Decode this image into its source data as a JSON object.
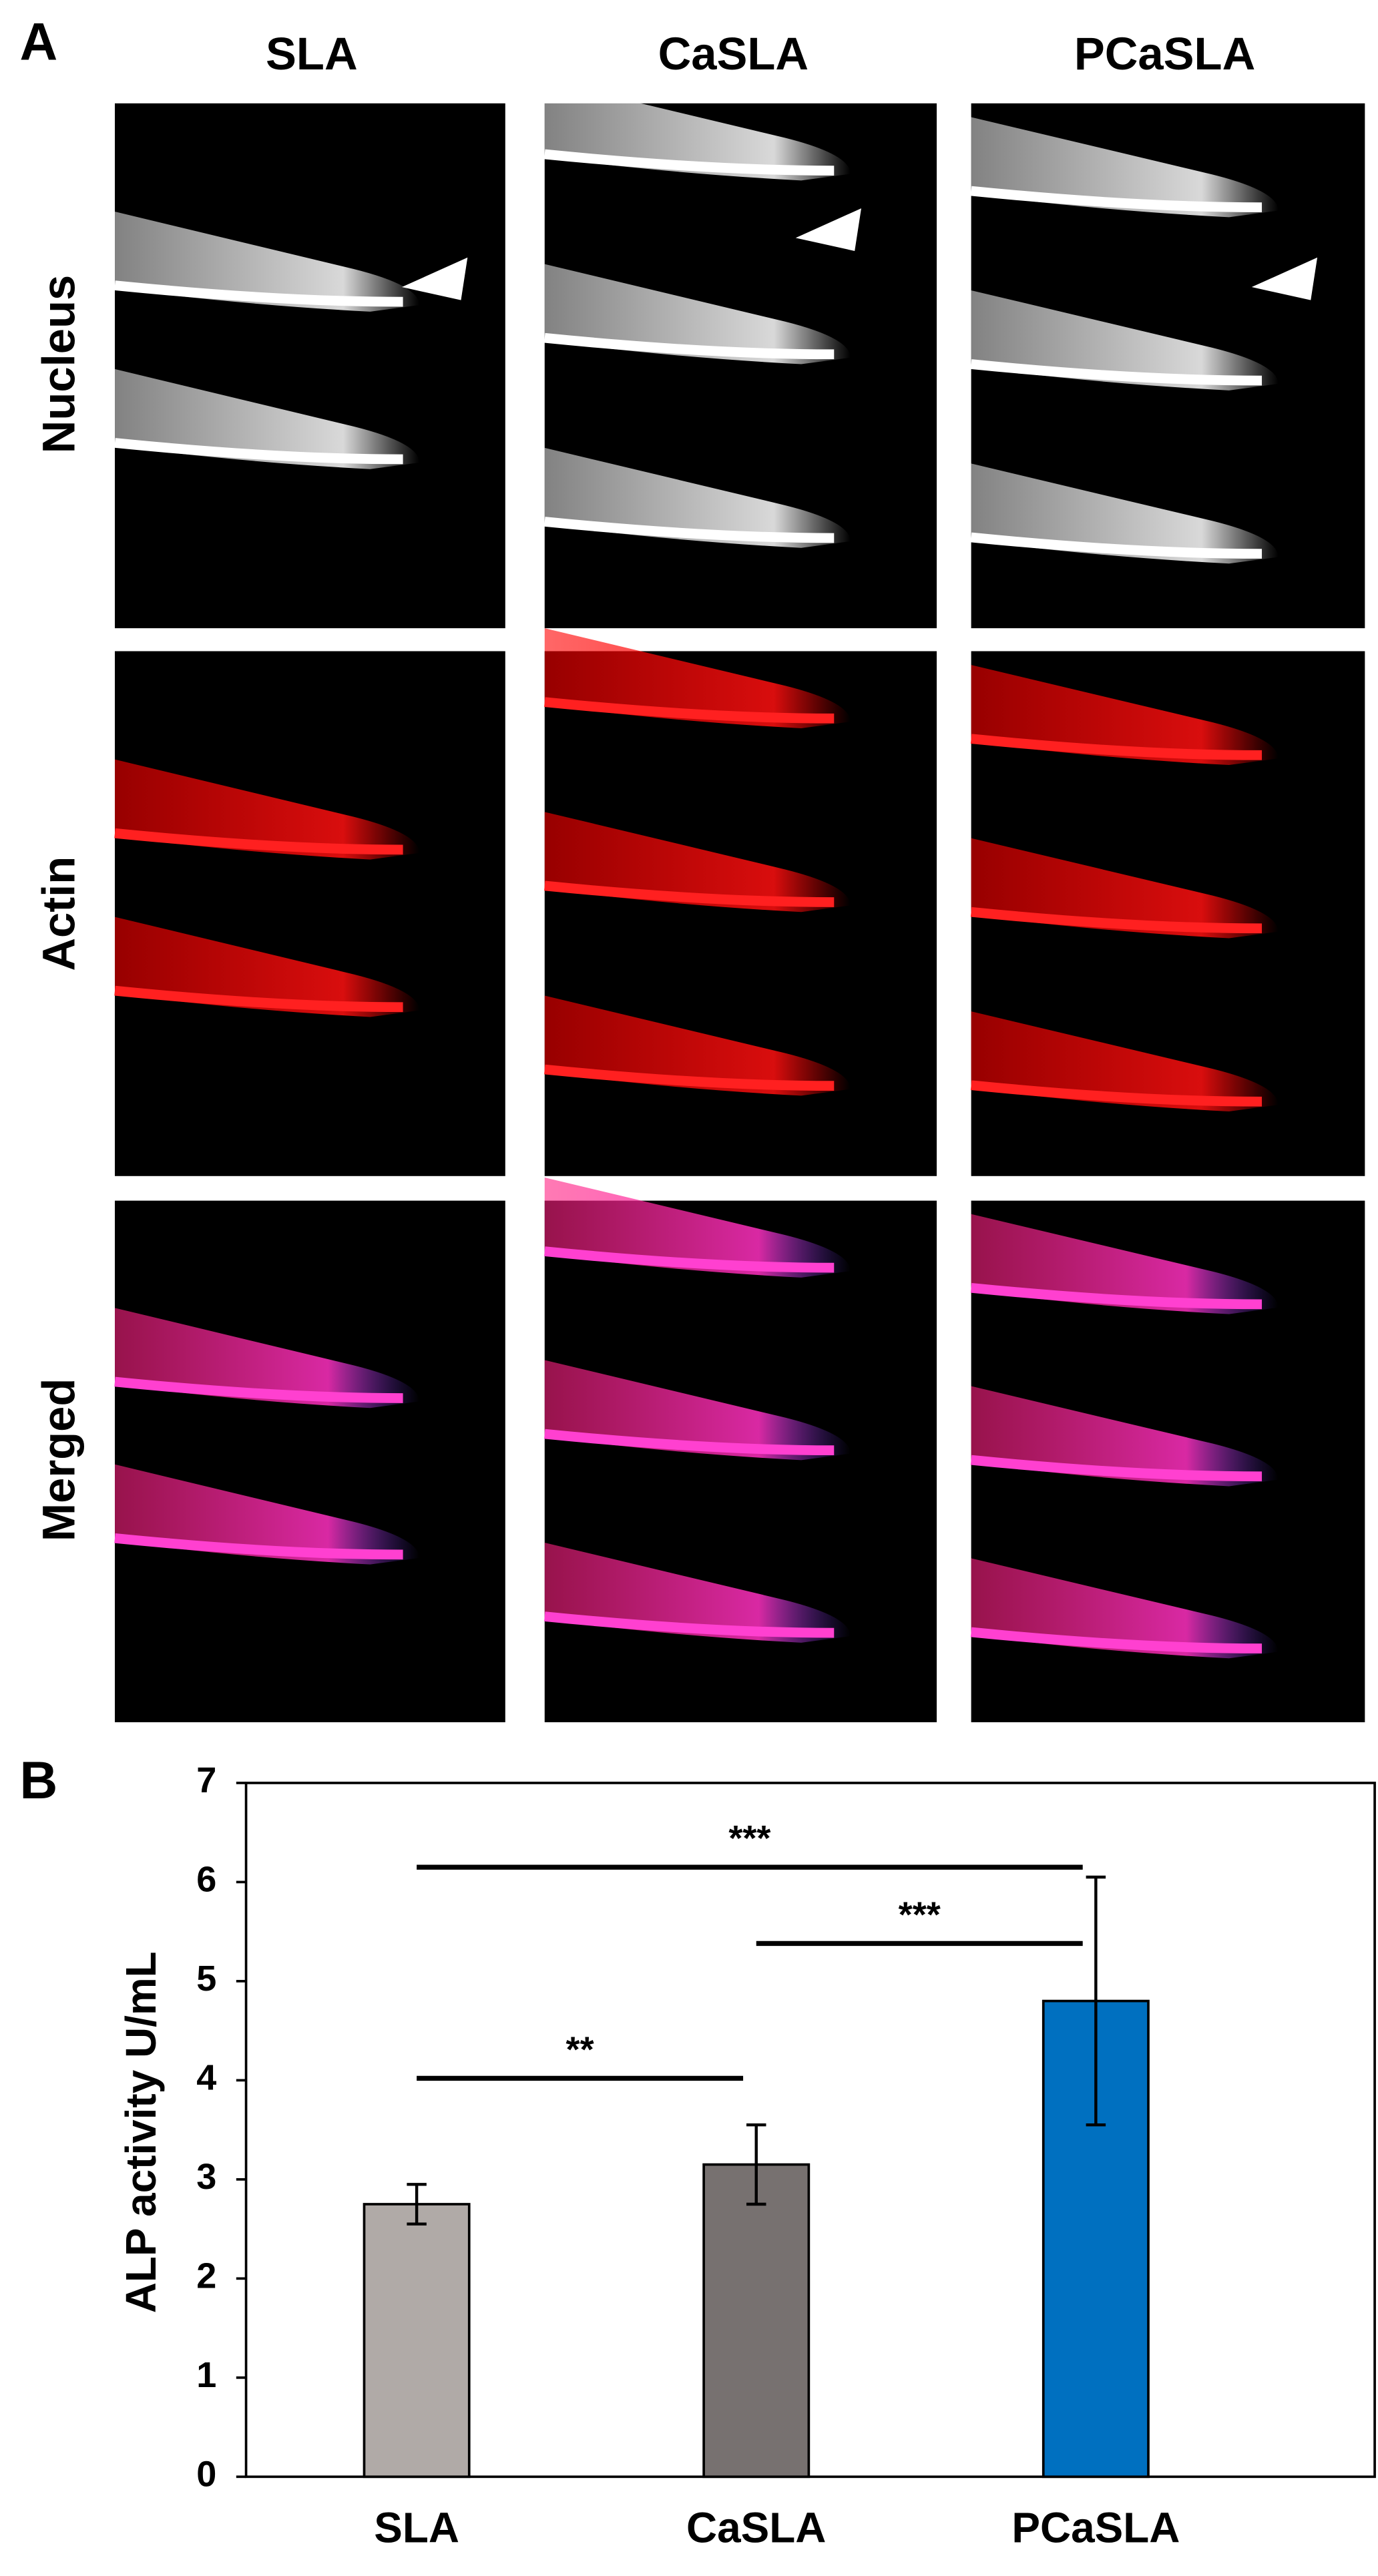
{
  "panel_a": {
    "label": "A",
    "columns": [
      "SLA",
      "CaSLA",
      "PCaSLA"
    ],
    "rows": [
      "Nucleus",
      "Actin",
      "Merged"
    ]
  },
  "chart_data": {
    "type": "bar",
    "panel_label": "B",
    "ylabel": "ALP activity U/mL",
    "categories": [
      "SLA",
      "CaSLA",
      "PCaSLA"
    ],
    "values": [
      2.75,
      3.15,
      4.8
    ],
    "errors": [
      0.2,
      0.4,
      1.25
    ],
    "colors": [
      "#b0aaa7",
      "#777170",
      "#0070c0"
    ],
    "ylim": [
      0,
      7
    ],
    "yticks": [
      0,
      1,
      2,
      3,
      4,
      5,
      6,
      7
    ],
    "annotations": [
      {
        "label": "***",
        "from": 0,
        "to": 2,
        "y": 6.15
      },
      {
        "label": "***",
        "from": 1,
        "to": 2,
        "y": 5.38
      },
      {
        "label": "**",
        "from": 0,
        "to": 1,
        "y": 4.02
      }
    ]
  }
}
